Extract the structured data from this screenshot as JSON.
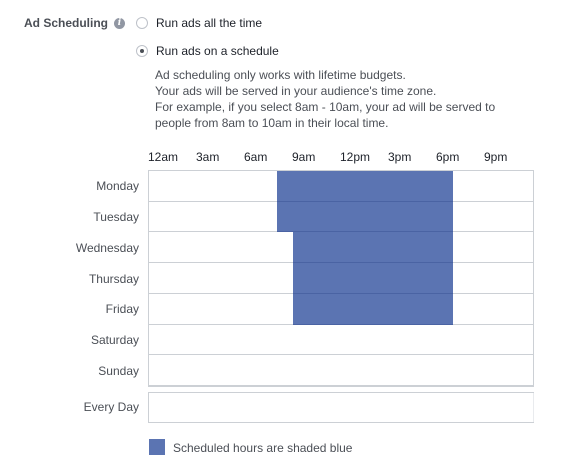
{
  "section": {
    "label": "Ad Scheduling",
    "info_icon": "info-icon"
  },
  "options": [
    {
      "label": "Run ads all the time",
      "selected": false
    },
    {
      "label": "Run ads on a schedule",
      "selected": true
    }
  ],
  "notes": [
    "Ad scheduling only works with lifetime budgets.",
    "Your ads will be served in your audience's time zone.",
    "For example, if you select 8am - 10am, your ad will be served to",
    "people from 8am to 10am in their local time."
  ],
  "hour_labels": [
    "12am",
    "3am",
    "6am",
    "9am",
    "12pm",
    "3pm",
    "6pm",
    "9pm"
  ],
  "days": [
    "Monday",
    "Tuesday",
    "Wednesday",
    "Thursday",
    "Friday",
    "Saturday",
    "Sunday"
  ],
  "schedule": [
    {
      "day": "Monday",
      "start_hour": 8,
      "end_hour": 19
    },
    {
      "day": "Tuesday",
      "start_hour": 8,
      "end_hour": 19
    },
    {
      "day": "Wednesday",
      "start_hour": 9,
      "end_hour": 19
    },
    {
      "day": "Thursday",
      "start_hour": 9,
      "end_hour": 19
    },
    {
      "day": "Friday",
      "start_hour": 9,
      "end_hour": 19
    },
    {
      "day": "Saturday",
      "start_hour": null,
      "end_hour": null
    },
    {
      "day": "Sunday",
      "start_hour": null,
      "end_hour": null
    }
  ],
  "every_day_label": "Every Day",
  "legend": {
    "text": "Scheduled hours are shaded blue",
    "color": "#5b74b2"
  },
  "colors": {
    "scheduled": "#5b74b2",
    "grid_line": "#ccd0d5"
  }
}
